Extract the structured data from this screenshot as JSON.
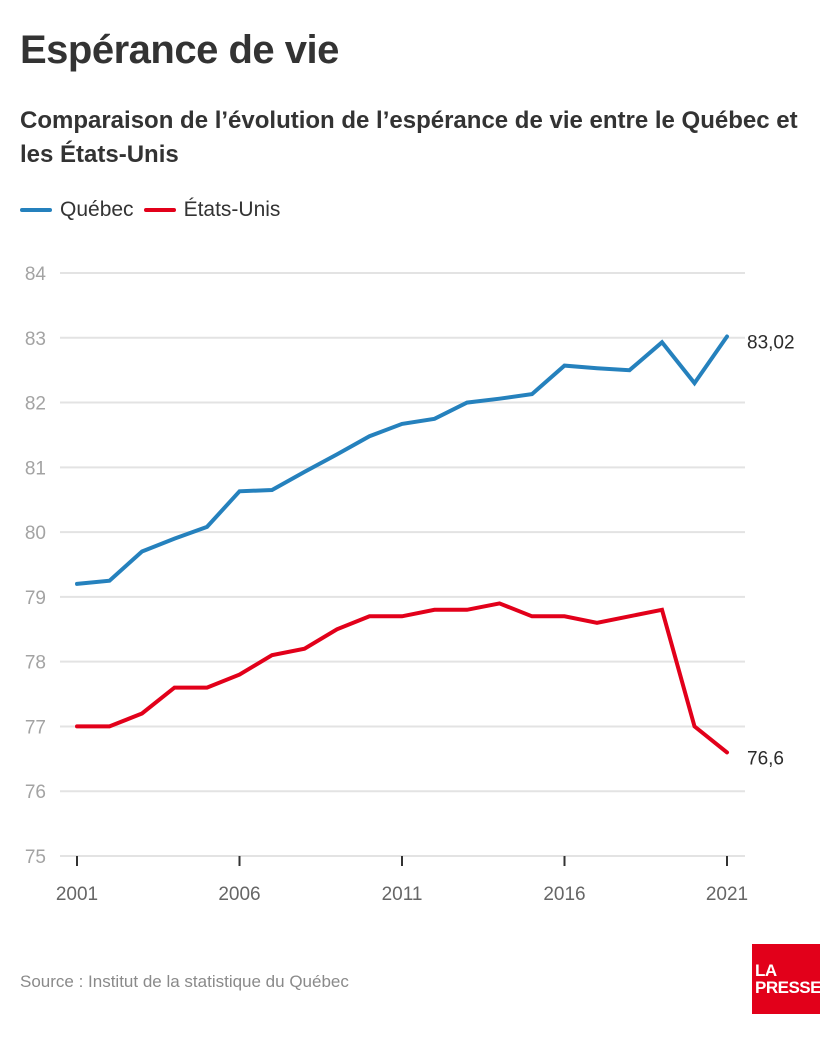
{
  "header": {
    "title": "Espérance de vie",
    "subtitle": "Comparaison de l’évolution de l’espérance de vie entre le Québec et les États-Unis"
  },
  "legend": [
    {
      "label": "Québec",
      "color": "#2581bd"
    },
    {
      "label": "États-Unis",
      "color": "#e2001a"
    }
  ],
  "footer": {
    "source": "Source : Institut de la statistique du Québec",
    "logo_line1": "LA",
    "logo_line2": "PRESSE"
  },
  "chart_data": {
    "type": "line",
    "title": "Espérance de vie",
    "subtitle": "Comparaison de l’évolution de l’espérance de vie entre le Québec et les États-Unis",
    "xlabel": "",
    "ylabel": "",
    "x": [
      2001,
      2002,
      2003,
      2004,
      2005,
      2006,
      2007,
      2008,
      2009,
      2010,
      2011,
      2012,
      2013,
      2014,
      2015,
      2016,
      2017,
      2018,
      2019,
      2020,
      2021
    ],
    "xlim": [
      2001,
      2021
    ],
    "ylim": [
      75,
      84
    ],
    "x_ticks": [
      2001,
      2006,
      2011,
      2016,
      2021
    ],
    "y_ticks": [
      75,
      76,
      77,
      78,
      79,
      80,
      81,
      82,
      83,
      84
    ],
    "grid": "horizontal",
    "legend_position": "top-left",
    "series": [
      {
        "name": "Québec",
        "color": "#2581bd",
        "values": [
          79.2,
          79.25,
          79.7,
          79.9,
          80.08,
          80.63,
          80.65,
          80.93,
          81.2,
          81.48,
          81.67,
          81.75,
          82.0,
          82.06,
          82.13,
          82.57,
          82.53,
          82.5,
          82.93,
          82.3,
          83.02
        ],
        "end_label": "83,02"
      },
      {
        "name": "États-Unis",
        "color": "#e2001a",
        "values": [
          77.0,
          77.0,
          77.2,
          77.6,
          77.6,
          77.8,
          78.1,
          78.2,
          78.5,
          78.7,
          78.7,
          78.8,
          78.8,
          78.9,
          78.7,
          78.7,
          78.6,
          78.7,
          78.8,
          77.0,
          76.6
        ],
        "end_label": "76,6"
      }
    ]
  }
}
